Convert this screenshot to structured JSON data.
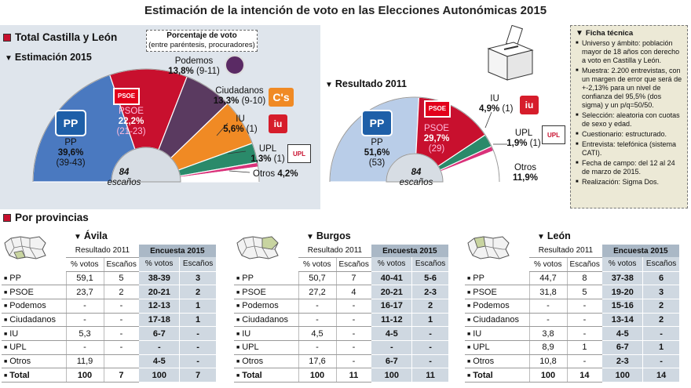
{
  "title": "Estimación de la intención de voto en las Elecciones Autonómicas 2015",
  "section_total": "Total Castilla y León",
  "section_prov": "Por provincias",
  "legend": {
    "line1": "Porcentaje de voto",
    "line2": "(entre paréntesis, procuradores)"
  },
  "colors": {
    "pp": "#4a79c0",
    "psoe": "#c8102e",
    "podemos": "#5a3a60",
    "ciudadanos": "#f08a24",
    "iu": "#2a8a6a",
    "upl": "#d9327a",
    "otros": "#ffffff",
    "pp2011": "#b9cde8",
    "psoe2011": "#c8102e",
    "iu2011": "#2a8a6a",
    "upl2011": "#d9327a",
    "otros2011": "#ffffff"
  },
  "chart_data": [
    {
      "type": "pie",
      "title": "Estimación 2015",
      "center_number": "84",
      "center_label": "escaños",
      "categories": [
        "PP",
        "PSOE",
        "Podemos",
        "Ciudadanos",
        "IU",
        "UPL",
        "Otros"
      ],
      "values": [
        39.6,
        22.2,
        13.8,
        13.3,
        5.6,
        1.3,
        4.2
      ],
      "seats": [
        "(39-43)",
        "(21-23)",
        "(9-11)",
        "(9-10)",
        "(1)",
        "(1)",
        ""
      ],
      "labels": {
        "pp_name": "PP",
        "pp_pct": "39,6%",
        "pp_seats": "(39-43)",
        "psoe_name": "PSOE",
        "psoe_pct": "22,2%",
        "psoe_seats": "(21-23)",
        "pod_name": "Podemos",
        "pod_pct": "13,8%",
        "pod_seats": "(9-11)",
        "cs_name": "Ciudadanos",
        "cs_pct": "13,3%",
        "cs_seats": "(9-10)",
        "iu_name": "IU",
        "iu_pct": "5,6%",
        "iu_seats": "(1)",
        "upl_name": "UPL",
        "upl_pct": "1,3%",
        "upl_seats": "(1)",
        "otros_name": "Otros",
        "otros_pct": "4,2%"
      }
    },
    {
      "type": "pie",
      "title": "Resultado 2011",
      "center_number": "84",
      "center_label": "escaños",
      "categories": [
        "PP",
        "PSOE",
        "IU",
        "UPL",
        "Otros"
      ],
      "values": [
        51.6,
        29.7,
        4.9,
        1.9,
        11.9
      ],
      "seats": [
        "(53)",
        "(29)",
        "(1)",
        "(1)",
        ""
      ],
      "labels": {
        "pp_name": "PP",
        "pp_pct": "51,6%",
        "pp_seats": "(53)",
        "psoe_name": "PSOE",
        "psoe_pct": "29,7%",
        "psoe_seats": "(29)",
        "iu_name": "IU",
        "iu_pct": "4,9%",
        "iu_seats": "(1)",
        "upl_name": "UPL",
        "upl_pct": "1,9%",
        "upl_seats": "(1)",
        "otros_name": "Otros",
        "otros_pct": "11,9%"
      }
    }
  ],
  "logos": {
    "pp": "PP",
    "psoe": "PSOE",
    "cs": "C's",
    "iu": "iu",
    "upl": "UPL"
  },
  "ficha": {
    "title": "Ficha técnica",
    "items": [
      "Universo y ámbito: población mayor de 18 años con derecho a voto en Castilla y León.",
      "Muestra: 2.200 entrevistas, con un margen de error que será de +-2,13% para un nivel de confianza del 95,5% (dos sigma) y un p/q=50/50.",
      "Selección: aleatoria con cuotas de sexo y edad.",
      "Cuestionario: estructurado.",
      "Entrevista: telefónica (sistema CATI).",
      "Fecha de campo: del 12 al 24 de marzo de 2015.",
      "Realización: Sigma Dos."
    ]
  },
  "table_headers": {
    "res2011": "Resultado 2011",
    "enc2015": "Encuesta 2015",
    "votos": "% votos",
    "escanos": "Escaños"
  },
  "provinces": [
    {
      "name": "Ávila",
      "rows": [
        {
          "party": "PP",
          "v2011": "59,1",
          "e2011": "5",
          "v2015": "38-39",
          "e2015": "3"
        },
        {
          "party": "PSOE",
          "v2011": "23,7",
          "e2011": "2",
          "v2015": "20-21",
          "e2015": "2"
        },
        {
          "party": "Podemos",
          "v2011": "-",
          "e2011": "-",
          "v2015": "12-13",
          "e2015": "1"
        },
        {
          "party": "Ciudadanos",
          "v2011": "-",
          "e2011": "-",
          "v2015": "17-18",
          "e2015": "1"
        },
        {
          "party": "IU",
          "v2011": "5,3",
          "e2011": "-",
          "v2015": "6-7",
          "e2015": "-"
        },
        {
          "party": "UPL",
          "v2011": "-",
          "e2011": "-",
          "v2015": "-",
          "e2015": "-"
        },
        {
          "party": "Otros",
          "v2011": "11,9",
          "e2011": "",
          "v2015": "4-5",
          "e2015": "-"
        },
        {
          "party": "Total",
          "v2011": "100",
          "e2011": "7",
          "v2015": "100",
          "e2015": "7"
        }
      ]
    },
    {
      "name": "Burgos",
      "rows": [
        {
          "party": "PP",
          "v2011": "50,7",
          "e2011": "7",
          "v2015": "40-41",
          "e2015": "5-6"
        },
        {
          "party": "PSOE",
          "v2011": "27,2",
          "e2011": "4",
          "v2015": "20-21",
          "e2015": "2-3"
        },
        {
          "party": "Podemos",
          "v2011": "-",
          "e2011": "-",
          "v2015": "16-17",
          "e2015": "2"
        },
        {
          "party": "Ciudadanos",
          "v2011": "-",
          "e2011": "-",
          "v2015": "11-12",
          "e2015": "1"
        },
        {
          "party": "IU",
          "v2011": "4,5",
          "e2011": "-",
          "v2015": "4-5",
          "e2015": "-"
        },
        {
          "party": "UPL",
          "v2011": "-",
          "e2011": "-",
          "v2015": "-",
          "e2015": "-"
        },
        {
          "party": "Otros",
          "v2011": "17,6",
          "e2011": "-",
          "v2015": "6-7",
          "e2015": "-"
        },
        {
          "party": "Total",
          "v2011": "100",
          "e2011": "11",
          "v2015": "100",
          "e2015": "11"
        }
      ]
    },
    {
      "name": "León",
      "rows": [
        {
          "party": "PP",
          "v2011": "44,7",
          "e2011": "8",
          "v2015": "37-38",
          "e2015": "6"
        },
        {
          "party": "PSOE",
          "v2011": "31,8",
          "e2011": "5",
          "v2015": "19-20",
          "e2015": "3"
        },
        {
          "party": "Podemos",
          "v2011": "-",
          "e2011": "-",
          "v2015": "15-16",
          "e2015": "2"
        },
        {
          "party": "Ciudadanos",
          "v2011": "-",
          "e2011": "-",
          "v2015": "13-14",
          "e2015": "2"
        },
        {
          "party": "IU",
          "v2011": "3,8",
          "e2011": "-",
          "v2015": "4-5",
          "e2015": "-"
        },
        {
          "party": "UPL",
          "v2011": "8,9",
          "e2011": "1",
          "v2015": "6-7",
          "e2015": "1"
        },
        {
          "party": "Otros",
          "v2011": "10,8",
          "e2011": "-",
          "v2015": "2-3",
          "e2015": "-"
        },
        {
          "party": "Total",
          "v2011": "100",
          "e2011": "14",
          "v2015": "100",
          "e2015": "14"
        }
      ]
    }
  ]
}
